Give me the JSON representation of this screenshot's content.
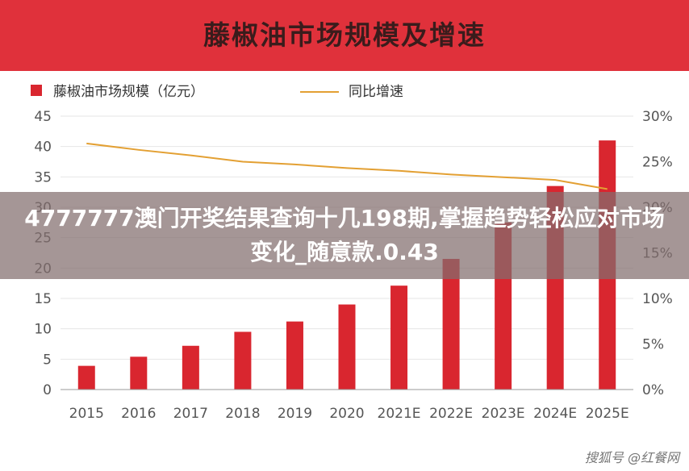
{
  "header": {
    "title": "藤椒油市场规模及增速"
  },
  "overlay": {
    "text": "4777777澳门开奖结果查询十几198期,掌握趋势轻松应对市场变化_随意款.0.43"
  },
  "watermark": {
    "text": "搜狐号 @红餐网"
  },
  "colors": {
    "bar": "#d9262f",
    "line": "#e3a033",
    "header": "#e0313b",
    "axis_text": "#555555",
    "grid": "#e6e6e6"
  },
  "chart_data": {
    "type": "bar",
    "categories": [
      "2015",
      "2016",
      "2017",
      "2018",
      "2019",
      "2020",
      "2021E",
      "2022E",
      "2023E",
      "2024E",
      "2025E"
    ],
    "series": [
      {
        "name": "藤椒油市场规模（亿元）",
        "type": "bar",
        "axis": "left",
        "values": [
          3.9,
          5.4,
          7.2,
          9.5,
          11.2,
          14.0,
          17.1,
          21.5,
          27.5,
          33.5,
          41.0
        ]
      },
      {
        "name": "同比增速",
        "type": "line",
        "axis": "right",
        "values": [
          0.27,
          0.263,
          0.257,
          0.25,
          0.247,
          0.243,
          0.24,
          0.236,
          0.233,
          0.23,
          0.22
        ]
      }
    ],
    "yleft": {
      "min": 0,
      "max": 45,
      "ticks": [
        "0",
        "5",
        "10",
        "15",
        "20",
        "25",
        "30",
        "35",
        "40",
        "45"
      ]
    },
    "yright": {
      "min": 0,
      "max": 0.3,
      "ticks": [
        "0%",
        "5%",
        "10%",
        "15%",
        "20%",
        "25%",
        "30%"
      ]
    },
    "legend_position": "top",
    "grid": true
  }
}
